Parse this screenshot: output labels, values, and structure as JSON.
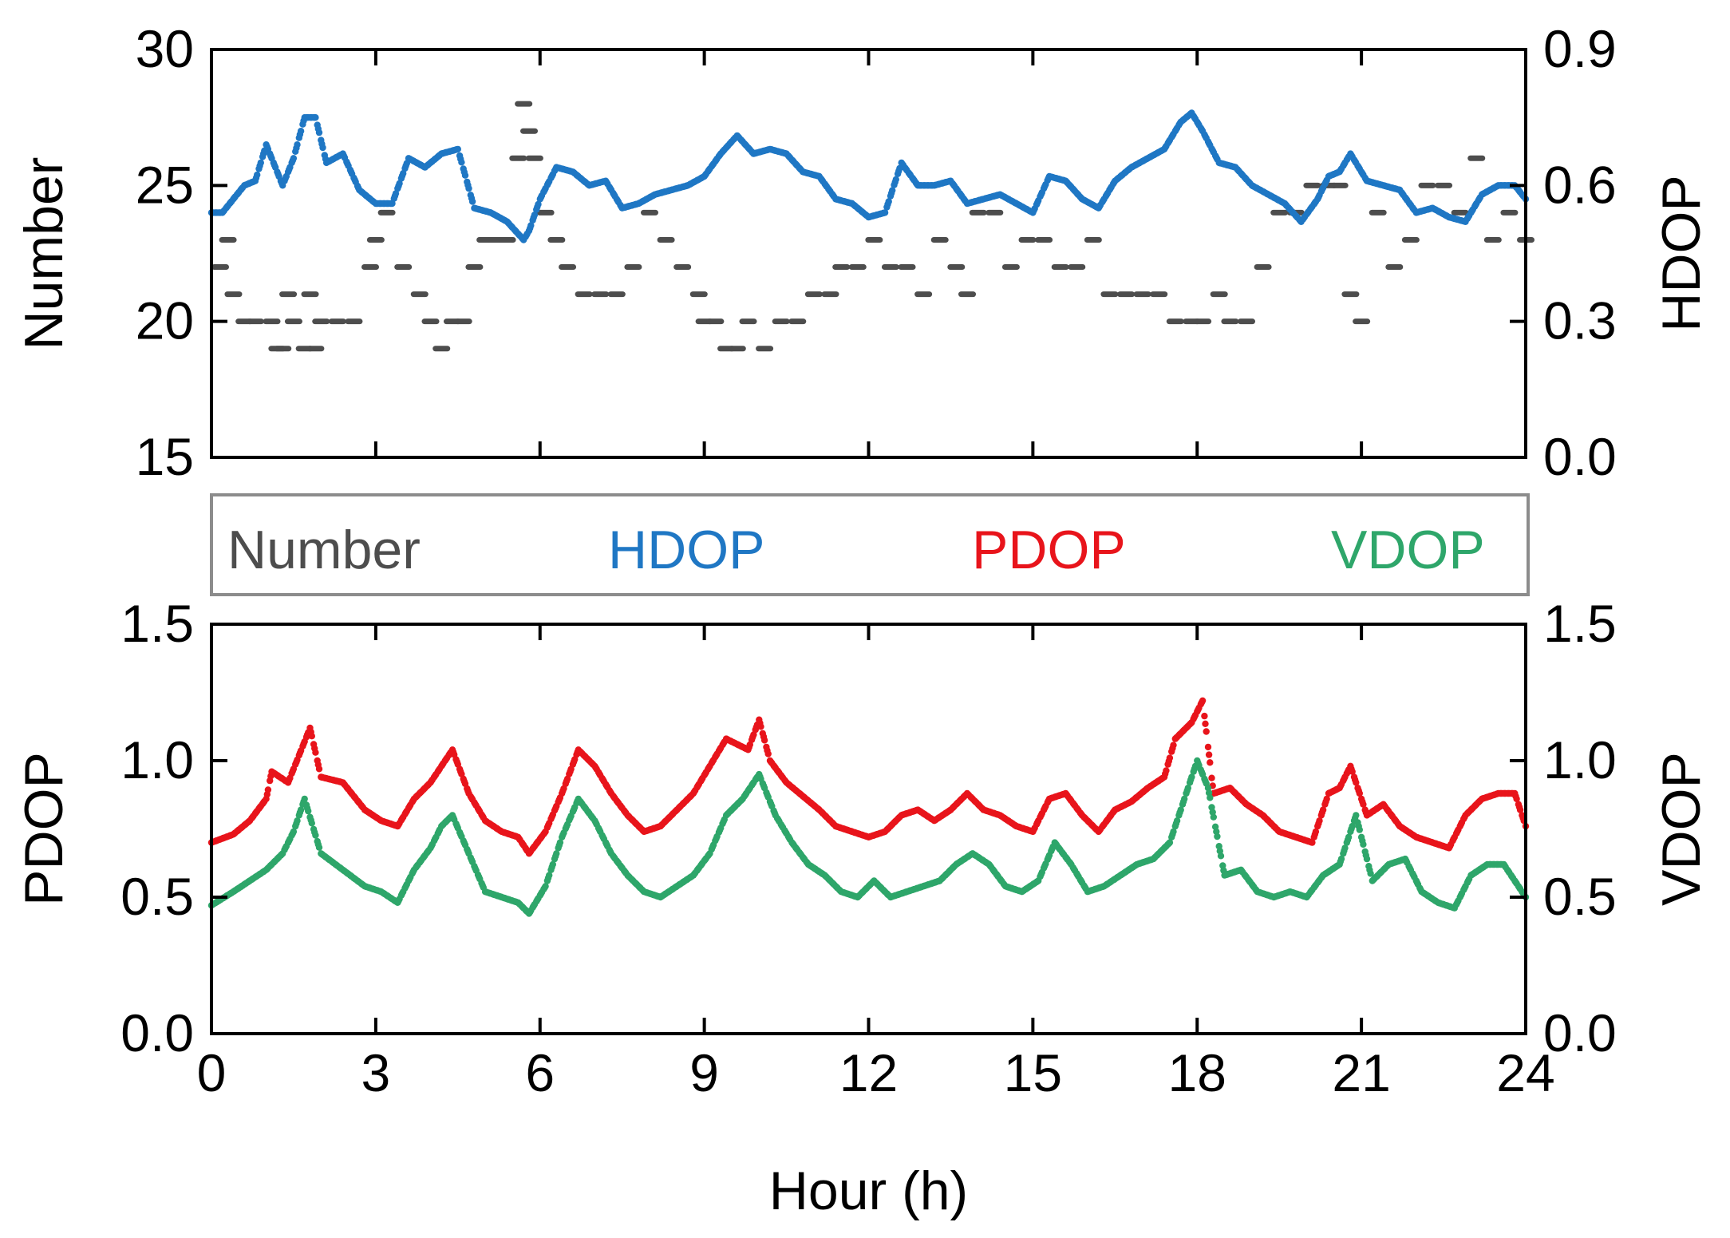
{
  "legend": {
    "items": [
      {
        "label": "Number",
        "color": "#4d4d4d"
      },
      {
        "label": "HDOP",
        "color": "#1f77c4"
      },
      {
        "label": "PDOP",
        "color": "#e8141b"
      },
      {
        "label": "VDOP",
        "color": "#2ea66a"
      }
    ]
  },
  "chart_data": [
    {
      "type": "scatter",
      "xlabel": "",
      "ylabel": "Number",
      "y2label": "HDOP",
      "xlim": [
        0,
        24
      ],
      "ylim": [
        15,
        30
      ],
      "y2lim": [
        0.0,
        0.9
      ],
      "xticks": [
        "0",
        "3",
        "6",
        "9",
        "12",
        "15",
        "18",
        "21",
        "24"
      ],
      "yticks": [
        "15",
        "20",
        "25",
        "30"
      ],
      "y2ticks": [
        "0.0",
        "0.3",
        "0.6",
        "0.9"
      ],
      "series": [
        {
          "name": "Number",
          "axis": "left",
          "color": "#4d4d4d",
          "x": [
            0.0,
            0.3,
            0.4,
            0.6,
            0.8,
            1.1,
            1.2,
            1.3,
            1.4,
            1.5,
            1.7,
            1.8,
            1.9,
            2.0,
            2.3,
            2.6,
            2.9,
            3.0,
            3.2,
            3.5,
            3.8,
            4.0,
            4.2,
            4.4,
            4.6,
            4.8,
            5.0,
            5.2,
            5.4,
            5.6,
            5.7,
            5.8,
            5.9,
            6.1,
            6.3,
            6.5,
            6.8,
            7.1,
            7.4,
            7.7,
            8.0,
            8.3,
            8.6,
            8.9,
            9.0,
            9.2,
            9.4,
            9.6,
            9.8,
            10.1,
            10.4,
            10.7,
            11.0,
            11.3,
            11.5,
            11.8,
            12.1,
            12.4,
            12.7,
            13.0,
            13.3,
            13.6,
            13.8,
            14.0,
            14.3,
            14.6,
            14.9,
            15.2,
            15.5,
            15.8,
            16.1,
            16.4,
            16.7,
            17.0,
            17.3,
            17.6,
            17.9,
            18.1,
            18.4,
            18.6,
            18.9,
            19.2,
            19.5,
            19.8,
            20.1,
            20.4,
            20.6,
            20.8,
            21.0,
            21.3,
            21.6,
            21.9,
            22.2,
            22.5,
            22.8,
            23.1,
            23.4,
            23.7,
            24.0
          ],
          "y": [
            22,
            23,
            21,
            20,
            20,
            20,
            19,
            19,
            21,
            20,
            19,
            21,
            19,
            20,
            20,
            20,
            22,
            23,
            24,
            22,
            21,
            20,
            19,
            20,
            20,
            22,
            23,
            23,
            23,
            26,
            28,
            27,
            26,
            24,
            23,
            22,
            21,
            21,
            21,
            22,
            24,
            23,
            22,
            21,
            20,
            20,
            19,
            19,
            20,
            19,
            20,
            20,
            21,
            21,
            22,
            22,
            23,
            22,
            22,
            21,
            23,
            22,
            21,
            24,
            24,
            22,
            23,
            23,
            22,
            22,
            23,
            21,
            21,
            21,
            21,
            20,
            20,
            20,
            21,
            20,
            20,
            22,
            24,
            24,
            25,
            25,
            25,
            21,
            20,
            24,
            22,
            23,
            25,
            25,
            24,
            26,
            23,
            24,
            23
          ],
          "values_note": null
        },
        {
          "name": "HDOP",
          "axis": "right",
          "color": "#1f77c4",
          "x": [
            0.0,
            0.2,
            0.4,
            0.6,
            0.8,
            1.0,
            1.1,
            1.3,
            1.5,
            1.7,
            1.9,
            2.1,
            2.4,
            2.7,
            3.0,
            3.3,
            3.6,
            3.9,
            4.2,
            4.5,
            4.8,
            5.1,
            5.4,
            5.7,
            5.8,
            6.0,
            6.3,
            6.6,
            6.9,
            7.2,
            7.5,
            7.8,
            8.1,
            8.4,
            8.7,
            9.0,
            9.3,
            9.6,
            9.9,
            10.2,
            10.5,
            10.8,
            11.1,
            11.4,
            11.7,
            12.0,
            12.3,
            12.6,
            12.9,
            13.2,
            13.5,
            13.8,
            14.1,
            14.4,
            14.7,
            15.0,
            15.3,
            15.6,
            15.9,
            16.2,
            16.5,
            16.8,
            17.1,
            17.4,
            17.7,
            17.9,
            18.1,
            18.4,
            18.7,
            19.0,
            19.3,
            19.6,
            19.9,
            20.2,
            20.4,
            20.6,
            20.8,
            21.1,
            21.4,
            21.7,
            22.0,
            22.3,
            22.6,
            22.9,
            23.2,
            23.5,
            23.8,
            24.0
          ],
          "y": [
            0.54,
            0.54,
            0.57,
            0.6,
            0.61,
            0.69,
            0.66,
            0.6,
            0.66,
            0.75,
            0.75,
            0.65,
            0.67,
            0.59,
            0.56,
            0.56,
            0.66,
            0.64,
            0.67,
            0.68,
            0.55,
            0.54,
            0.52,
            0.48,
            0.5,
            0.57,
            0.64,
            0.63,
            0.6,
            0.61,
            0.55,
            0.56,
            0.58,
            0.59,
            0.6,
            0.62,
            0.67,
            0.71,
            0.67,
            0.68,
            0.67,
            0.63,
            0.62,
            0.57,
            0.56,
            0.53,
            0.54,
            0.65,
            0.6,
            0.6,
            0.61,
            0.56,
            0.57,
            0.58,
            0.56,
            0.54,
            0.62,
            0.61,
            0.57,
            0.55,
            0.61,
            0.64,
            0.66,
            0.68,
            0.74,
            0.76,
            0.72,
            0.65,
            0.64,
            0.6,
            0.58,
            0.56,
            0.52,
            0.57,
            0.62,
            0.63,
            0.67,
            0.61,
            0.6,
            0.59,
            0.54,
            0.55,
            0.53,
            0.52,
            0.58,
            0.6,
            0.6,
            0.57
          ]
        }
      ]
    },
    {
      "type": "scatter",
      "xlabel": "Hour (h)",
      "ylabel": "PDOP",
      "y2label": "VDOP",
      "xlim": [
        0,
        24
      ],
      "ylim": [
        0.0,
        1.5
      ],
      "y2lim": [
        0.0,
        1.5
      ],
      "xticks": [
        "0",
        "3",
        "6",
        "9",
        "12",
        "15",
        "18",
        "21",
        "24"
      ],
      "yticks": [
        "0.0",
        "0.5",
        "1.0",
        "1.5"
      ],
      "y2ticks": [
        "0.0",
        "0.5",
        "1.0",
        "1.5"
      ],
      "series": [
        {
          "name": "PDOP",
          "axis": "left",
          "color": "#e8141b",
          "x": [
            0.0,
            0.4,
            0.7,
            1.0,
            1.1,
            1.4,
            1.6,
            1.8,
            2.0,
            2.4,
            2.8,
            3.1,
            3.4,
            3.7,
            4.0,
            4.2,
            4.4,
            4.7,
            5.0,
            5.3,
            5.6,
            5.8,
            6.1,
            6.4,
            6.7,
            7.0,
            7.3,
            7.6,
            7.9,
            8.2,
            8.5,
            8.8,
            9.1,
            9.4,
            9.6,
            9.8,
            10.0,
            10.2,
            10.5,
            10.8,
            11.1,
            11.4,
            11.7,
            12.0,
            12.3,
            12.6,
            12.9,
            13.2,
            13.5,
            13.8,
            14.1,
            14.4,
            14.7,
            15.0,
            15.3,
            15.6,
            15.9,
            16.2,
            16.5,
            16.8,
            17.1,
            17.4,
            17.6,
            17.9,
            18.1,
            18.3,
            18.6,
            18.9,
            19.2,
            19.5,
            19.8,
            20.1,
            20.4,
            20.6,
            20.8,
            21.1,
            21.4,
            21.7,
            22.0,
            22.3,
            22.6,
            22.9,
            23.2,
            23.5,
            23.8,
            24.0
          ],
          "y": [
            0.7,
            0.73,
            0.78,
            0.86,
            0.96,
            0.92,
            1.02,
            1.12,
            0.94,
            0.92,
            0.82,
            0.78,
            0.76,
            0.86,
            0.92,
            0.98,
            1.04,
            0.88,
            0.78,
            0.74,
            0.72,
            0.66,
            0.74,
            0.88,
            1.04,
            0.98,
            0.88,
            0.8,
            0.74,
            0.76,
            0.82,
            0.88,
            0.98,
            1.08,
            1.06,
            1.04,
            1.15,
            1.0,
            0.92,
            0.87,
            0.82,
            0.76,
            0.74,
            0.72,
            0.74,
            0.8,
            0.82,
            0.78,
            0.82,
            0.88,
            0.82,
            0.8,
            0.76,
            0.74,
            0.86,
            0.88,
            0.8,
            0.74,
            0.82,
            0.85,
            0.9,
            0.94,
            1.08,
            1.14,
            1.22,
            0.88,
            0.9,
            0.84,
            0.8,
            0.74,
            0.72,
            0.7,
            0.88,
            0.9,
            0.98,
            0.8,
            0.84,
            0.76,
            0.72,
            0.7,
            0.68,
            0.8,
            0.86,
            0.88,
            0.88,
            0.76
          ]
        },
        {
          "name": "VDOP",
          "axis": "right",
          "color": "#2ea66a",
          "x": [
            0.0,
            0.4,
            0.7,
            1.0,
            1.3,
            1.5,
            1.7,
            2.0,
            2.4,
            2.8,
            3.1,
            3.4,
            3.7,
            4.0,
            4.2,
            4.4,
            4.7,
            5.0,
            5.3,
            5.6,
            5.8,
            6.1,
            6.4,
            6.7,
            7.0,
            7.3,
            7.6,
            7.9,
            8.2,
            8.5,
            8.8,
            9.1,
            9.4,
            9.7,
            10.0,
            10.3,
            10.6,
            10.9,
            11.2,
            11.5,
            11.8,
            12.1,
            12.4,
            12.7,
            13.0,
            13.3,
            13.6,
            13.9,
            14.2,
            14.5,
            14.8,
            15.1,
            15.4,
            15.7,
            16.0,
            16.3,
            16.6,
            16.9,
            17.2,
            17.5,
            17.8,
            18.0,
            18.2,
            18.5,
            18.8,
            19.1,
            19.4,
            19.7,
            20.0,
            20.3,
            20.6,
            20.9,
            21.2,
            21.5,
            21.8,
            22.1,
            22.4,
            22.7,
            23.0,
            23.3,
            23.6,
            24.0
          ],
          "y": [
            0.47,
            0.52,
            0.56,
            0.6,
            0.66,
            0.74,
            0.86,
            0.66,
            0.6,
            0.54,
            0.52,
            0.48,
            0.6,
            0.68,
            0.76,
            0.8,
            0.66,
            0.52,
            0.5,
            0.48,
            0.44,
            0.54,
            0.72,
            0.86,
            0.78,
            0.66,
            0.58,
            0.52,
            0.5,
            0.54,
            0.58,
            0.66,
            0.8,
            0.86,
            0.95,
            0.8,
            0.7,
            0.62,
            0.58,
            0.52,
            0.5,
            0.56,
            0.5,
            0.52,
            0.54,
            0.56,
            0.62,
            0.66,
            0.62,
            0.54,
            0.52,
            0.56,
            0.7,
            0.62,
            0.52,
            0.54,
            0.58,
            0.62,
            0.64,
            0.7,
            0.88,
            1.0,
            0.9,
            0.58,
            0.6,
            0.52,
            0.5,
            0.52,
            0.5,
            0.58,
            0.62,
            0.8,
            0.56,
            0.62,
            0.64,
            0.52,
            0.48,
            0.46,
            0.58,
            0.62,
            0.62,
            0.5
          ]
        }
      ]
    }
  ]
}
